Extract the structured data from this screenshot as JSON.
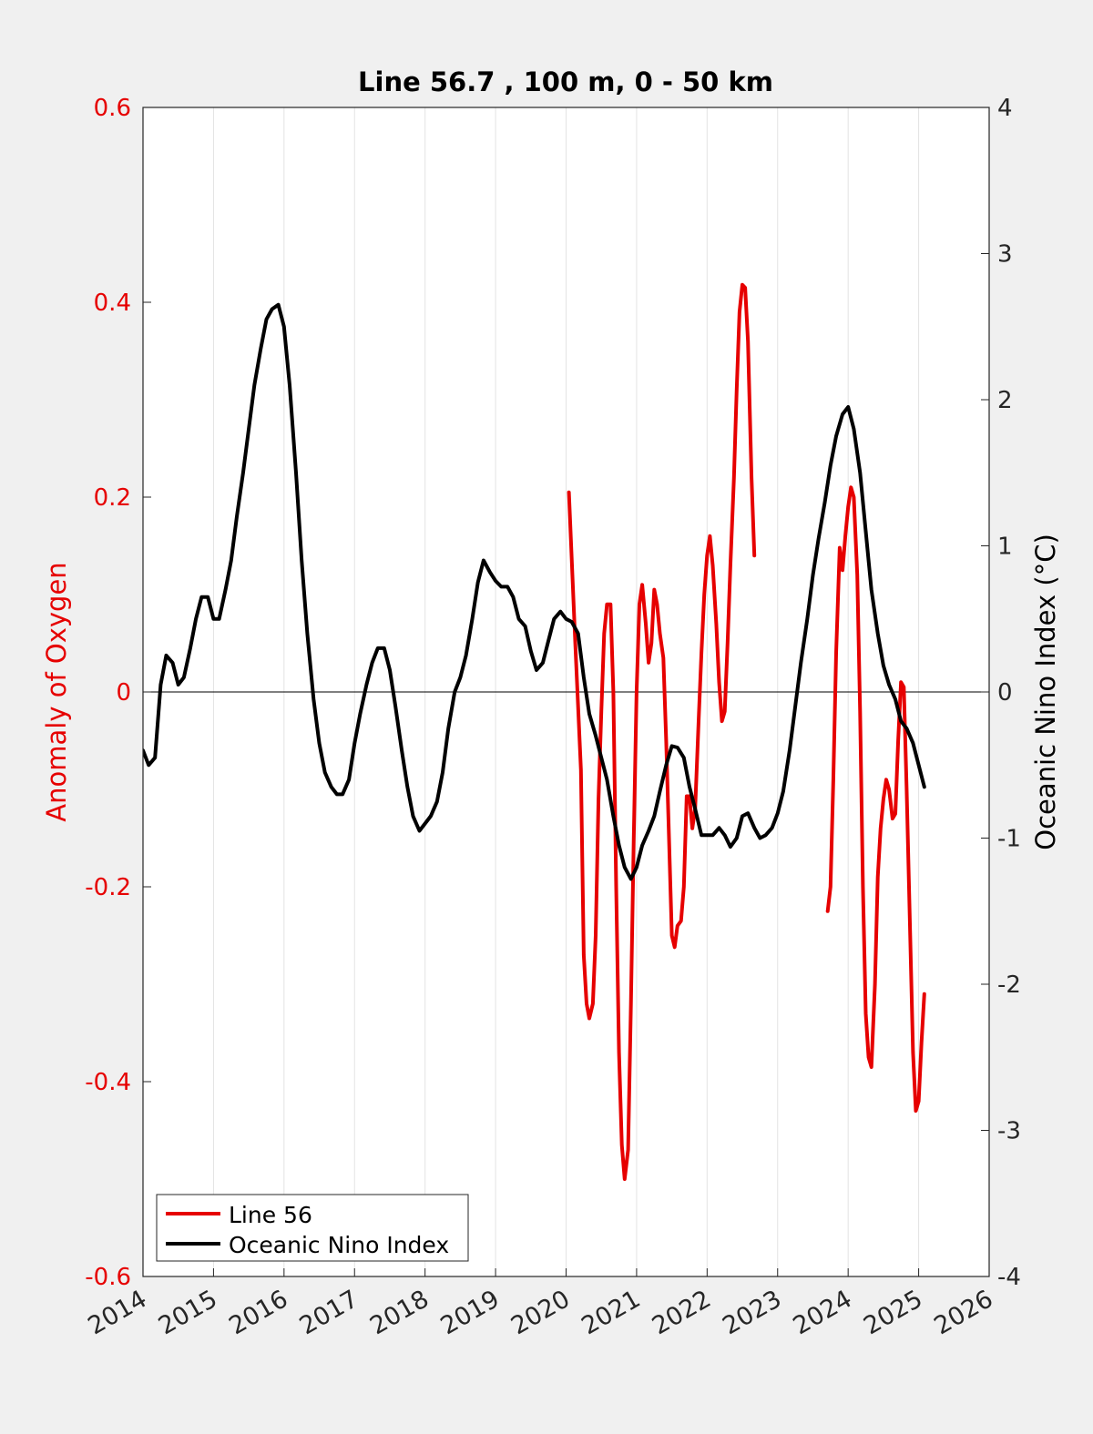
{
  "chart_data": {
    "type": "line",
    "title": "Line 56.7 , 100 m, 0 - 50 km",
    "xlabel": "",
    "ylabel_left": "Anomaly of Oxygen",
    "ylabel_right": "Oceanic Nino Index (°C)",
    "xlim": [
      2014,
      2026
    ],
    "ylim_left": [
      -0.6,
      0.6
    ],
    "ylim_right": [
      -4,
      4
    ],
    "x_ticks": [
      2014,
      2015,
      2016,
      2017,
      2018,
      2019,
      2020,
      2021,
      2022,
      2023,
      2024,
      2025,
      2026
    ],
    "x_tick_labels": [
      "2014",
      "2015",
      "2016",
      "2017",
      "2018",
      "2019",
      "2020",
      "2021",
      "2022",
      "2023",
      "2024",
      "2025",
      "2026"
    ],
    "y_left_ticks": [
      0.6,
      0.4,
      0.2,
      0,
      -0.2,
      -0.4,
      -0.6
    ],
    "y_left_tick_labels": [
      "0.6",
      "0.4",
      "0.2",
      "0",
      "-0.2",
      "-0.4",
      "-0.6"
    ],
    "y_right_ticks": [
      4,
      3,
      2,
      1,
      0,
      -1,
      -2,
      -3,
      -4
    ],
    "y_right_tick_labels": [
      "4",
      "3",
      "2",
      "1",
      "0",
      "-1",
      "-2",
      "-3",
      "-4"
    ],
    "grid": "vertical",
    "zero_line": true,
    "legend_position": "bottom-left",
    "series": [
      {
        "name": "Line 56",
        "axis": "left",
        "color": "#e60000",
        "segments": [
          [
            [
              2020.04,
              0.205
            ],
            [
              2020.13,
              0.05
            ],
            [
              2020.21,
              -0.08
            ],
            [
              2020.25,
              -0.27
            ],
            [
              2020.29,
              -0.32
            ],
            [
              2020.33,
              -0.335
            ],
            [
              2020.38,
              -0.32
            ],
            [
              2020.42,
              -0.25
            ],
            [
              2020.46,
              -0.11
            ],
            [
              2020.5,
              -0.02
            ],
            [
              2020.54,
              0.06
            ],
            [
              2020.58,
              0.09
            ],
            [
              2020.63,
              0.09
            ],
            [
              2020.67,
              0.0
            ],
            [
              2020.71,
              -0.2
            ],
            [
              2020.75,
              -0.37
            ],
            [
              2020.79,
              -0.465
            ],
            [
              2020.83,
              -0.5
            ],
            [
              2020.88,
              -0.47
            ],
            [
              2020.92,
              -0.32
            ],
            [
              2020.96,
              -0.15
            ],
            [
              2021.0,
              0.0
            ],
            [
              2021.04,
              0.09
            ],
            [
              2021.08,
              0.11
            ],
            [
              2021.13,
              0.07
            ],
            [
              2021.17,
              0.03
            ],
            [
              2021.21,
              0.05
            ],
            [
              2021.25,
              0.105
            ],
            [
              2021.29,
              0.09
            ],
            [
              2021.33,
              0.06
            ],
            [
              2021.38,
              0.035
            ],
            [
              2021.42,
              -0.05
            ],
            [
              2021.46,
              -0.15
            ],
            [
              2021.5,
              -0.25
            ],
            [
              2021.54,
              -0.262
            ],
            [
              2021.58,
              -0.24
            ],
            [
              2021.63,
              -0.235
            ],
            [
              2021.67,
              -0.2
            ],
            [
              2021.71,
              -0.107
            ],
            [
              2021.75,
              -0.107
            ],
            [
              2021.79,
              -0.14
            ],
            [
              2021.83,
              -0.12
            ],
            [
              2021.88,
              -0.03
            ],
            [
              2021.92,
              0.04
            ],
            [
              2021.96,
              0.1
            ],
            [
              2022.0,
              0.14
            ],
            [
              2022.04,
              0.16
            ],
            [
              2022.08,
              0.13
            ],
            [
              2022.13,
              0.07
            ],
            [
              2022.17,
              0.01
            ],
            [
              2022.21,
              -0.03
            ],
            [
              2022.25,
              -0.02
            ],
            [
              2022.29,
              0.05
            ],
            [
              2022.33,
              0.13
            ],
            [
              2022.38,
              0.22
            ],
            [
              2022.42,
              0.31
            ],
            [
              2022.46,
              0.39
            ],
            [
              2022.5,
              0.418
            ],
            [
              2022.54,
              0.415
            ],
            [
              2022.58,
              0.36
            ],
            [
              2022.63,
              0.22
            ],
            [
              2022.67,
              0.14
            ]
          ],
          [
            [
              2023.71,
              -0.225
            ],
            [
              2023.75,
              -0.2
            ],
            [
              2023.79,
              -0.09
            ],
            [
              2023.83,
              0.04
            ],
            [
              2023.88,
              0.148
            ],
            [
              2023.92,
              0.125
            ],
            [
              2023.96,
              0.16
            ],
            [
              2024.0,
              0.19
            ],
            [
              2024.04,
              0.21
            ],
            [
              2024.08,
              0.2
            ],
            [
              2024.13,
              0.12
            ],
            [
              2024.17,
              -0.02
            ],
            [
              2024.21,
              -0.2
            ],
            [
              2024.25,
              -0.33
            ],
            [
              2024.29,
              -0.375
            ],
            [
              2024.33,
              -0.385
            ],
            [
              2024.38,
              -0.3
            ],
            [
              2024.42,
              -0.19
            ],
            [
              2024.46,
              -0.14
            ],
            [
              2024.5,
              -0.11
            ],
            [
              2024.54,
              -0.09
            ],
            [
              2024.58,
              -0.1
            ],
            [
              2024.63,
              -0.13
            ],
            [
              2024.67,
              -0.125
            ],
            [
              2024.71,
              -0.05
            ],
            [
              2024.75,
              0.01
            ],
            [
              2024.79,
              0.005
            ],
            [
              2024.83,
              -0.1
            ],
            [
              2024.88,
              -0.25
            ],
            [
              2024.92,
              -0.37
            ],
            [
              2024.96,
              -0.43
            ],
            [
              2025.0,
              -0.42
            ],
            [
              2025.04,
              -0.36
            ],
            [
              2025.08,
              -0.31
            ]
          ]
        ]
      },
      {
        "name": "Oceanic Nino Index",
        "axis": "right",
        "color": "#000000",
        "segments": [
          [
            [
              2014.0,
              -0.4
            ],
            [
              2014.08,
              -0.5
            ],
            [
              2014.17,
              -0.45
            ],
            [
              2014.25,
              0.05
            ],
            [
              2014.33,
              0.25
            ],
            [
              2014.42,
              0.2
            ],
            [
              2014.5,
              0.05
            ],
            [
              2014.58,
              0.1
            ],
            [
              2014.67,
              0.3
            ],
            [
              2014.75,
              0.5
            ],
            [
              2014.83,
              0.65
            ],
            [
              2014.92,
              0.65
            ],
            [
              2015.0,
              0.5
            ],
            [
              2015.08,
              0.5
            ],
            [
              2015.17,
              0.7
            ],
            [
              2015.25,
              0.9
            ],
            [
              2015.33,
              1.2
            ],
            [
              2015.42,
              1.5
            ],
            [
              2015.5,
              1.8
            ],
            [
              2015.58,
              2.1
            ],
            [
              2015.67,
              2.35
            ],
            [
              2015.75,
              2.55
            ],
            [
              2015.83,
              2.62
            ],
            [
              2015.92,
              2.65
            ],
            [
              2016.0,
              2.5
            ],
            [
              2016.08,
              2.1
            ],
            [
              2016.17,
              1.5
            ],
            [
              2016.25,
              0.9
            ],
            [
              2016.33,
              0.4
            ],
            [
              2016.42,
              -0.05
            ],
            [
              2016.5,
              -0.35
            ],
            [
              2016.58,
              -0.55
            ],
            [
              2016.67,
              -0.65
            ],
            [
              2016.75,
              -0.7
            ],
            [
              2016.83,
              -0.7
            ],
            [
              2016.92,
              -0.6
            ],
            [
              2017.0,
              -0.35
            ],
            [
              2017.08,
              -0.15
            ],
            [
              2017.17,
              0.05
            ],
            [
              2017.25,
              0.2
            ],
            [
              2017.33,
              0.3
            ],
            [
              2017.42,
              0.3
            ],
            [
              2017.5,
              0.15
            ],
            [
              2017.58,
              -0.1
            ],
            [
              2017.67,
              -0.4
            ],
            [
              2017.75,
              -0.65
            ],
            [
              2017.83,
              -0.85
            ],
            [
              2017.92,
              -0.95
            ],
            [
              2018.0,
              -0.9
            ],
            [
              2018.08,
              -0.85
            ],
            [
              2018.17,
              -0.75
            ],
            [
              2018.25,
              -0.55
            ],
            [
              2018.33,
              -0.25
            ],
            [
              2018.42,
              0.0
            ],
            [
              2018.5,
              0.1
            ],
            [
              2018.58,
              0.25
            ],
            [
              2018.67,
              0.5
            ],
            [
              2018.75,
              0.75
            ],
            [
              2018.83,
              0.9
            ],
            [
              2018.92,
              0.82
            ],
            [
              2019.0,
              0.76
            ],
            [
              2019.08,
              0.72
            ],
            [
              2019.17,
              0.72
            ],
            [
              2019.25,
              0.65
            ],
            [
              2019.33,
              0.5
            ],
            [
              2019.42,
              0.45
            ],
            [
              2019.5,
              0.28
            ],
            [
              2019.58,
              0.15
            ],
            [
              2019.67,
              0.2
            ],
            [
              2019.75,
              0.35
            ],
            [
              2019.83,
              0.5
            ],
            [
              2019.92,
              0.55
            ],
            [
              2020.0,
              0.5
            ],
            [
              2020.08,
              0.48
            ],
            [
              2020.17,
              0.4
            ],
            [
              2020.25,
              0.1
            ],
            [
              2020.33,
              -0.15
            ],
            [
              2020.42,
              -0.3
            ],
            [
              2020.5,
              -0.45
            ],
            [
              2020.58,
              -0.6
            ],
            [
              2020.67,
              -0.85
            ],
            [
              2020.75,
              -1.05
            ],
            [
              2020.83,
              -1.2
            ],
            [
              2020.92,
              -1.28
            ],
            [
              2021.0,
              -1.2
            ],
            [
              2021.08,
              -1.05
            ],
            [
              2021.17,
              -0.95
            ],
            [
              2021.25,
              -0.85
            ],
            [
              2021.33,
              -0.68
            ],
            [
              2021.42,
              -0.5
            ],
            [
              2021.5,
              -0.37
            ],
            [
              2021.58,
              -0.38
            ],
            [
              2021.67,
              -0.45
            ],
            [
              2021.75,
              -0.65
            ],
            [
              2021.83,
              -0.8
            ],
            [
              2021.92,
              -0.98
            ],
            [
              2022.0,
              -0.98
            ],
            [
              2022.08,
              -0.98
            ],
            [
              2022.17,
              -0.93
            ],
            [
              2022.25,
              -0.98
            ],
            [
              2022.33,
              -1.06
            ],
            [
              2022.42,
              -1.0
            ],
            [
              2022.5,
              -0.85
            ],
            [
              2022.58,
              -0.83
            ],
            [
              2022.67,
              -0.93
            ],
            [
              2022.75,
              -1.0
            ],
            [
              2022.83,
              -0.98
            ],
            [
              2022.92,
              -0.93
            ],
            [
              2023.0,
              -0.83
            ],
            [
              2023.08,
              -0.68
            ],
            [
              2023.17,
              -0.4
            ],
            [
              2023.25,
              -0.1
            ],
            [
              2023.33,
              0.2
            ],
            [
              2023.42,
              0.5
            ],
            [
              2023.5,
              0.8
            ],
            [
              2023.58,
              1.05
            ],
            [
              2023.67,
              1.3
            ],
            [
              2023.75,
              1.55
            ],
            [
              2023.83,
              1.75
            ],
            [
              2023.92,
              1.9
            ],
            [
              2024.0,
              1.95
            ],
            [
              2024.08,
              1.8
            ],
            [
              2024.17,
              1.5
            ],
            [
              2024.25,
              1.1
            ],
            [
              2024.33,
              0.7
            ],
            [
              2024.42,
              0.4
            ],
            [
              2024.5,
              0.18
            ],
            [
              2024.58,
              0.05
            ],
            [
              2024.67,
              -0.05
            ],
            [
              2024.75,
              -0.2
            ],
            [
              2024.83,
              -0.25
            ],
            [
              2024.92,
              -0.35
            ],
            [
              2025.0,
              -0.5
            ],
            [
              2025.08,
              -0.65
            ]
          ]
        ]
      }
    ],
    "legend": [
      "Line 56",
      "Oceanic Nino Index"
    ]
  }
}
